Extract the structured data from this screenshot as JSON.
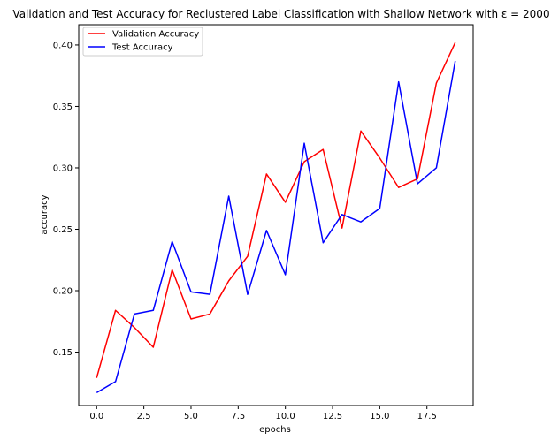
{
  "chart_data": {
    "type": "line",
    "title": "Validation and Test Accuracy for Reclustered Label Classification with Shallow Network with ε = 2000",
    "xlabel": "epochs",
    "ylabel": "accuracy",
    "xlim": [
      -0.95,
      19.95
    ],
    "ylim": [
      0.1065,
      0.4165
    ],
    "xticks": [
      0.0,
      2.5,
      5.0,
      7.5,
      10.0,
      12.5,
      15.0,
      17.5
    ],
    "xtick_labels": [
      "0.0",
      "2.5",
      "5.0",
      "7.5",
      "10.0",
      "12.5",
      "15.0",
      "17.5"
    ],
    "yticks": [
      0.15,
      0.2,
      0.25,
      0.3,
      0.35,
      0.4
    ],
    "ytick_labels": [
      "0.15",
      "0.20",
      "0.25",
      "0.30",
      "0.35",
      "0.40"
    ],
    "grid": false,
    "legend_position": "top-left",
    "x": [
      0,
      1,
      2,
      3,
      4,
      5,
      6,
      7,
      8,
      9,
      10,
      11,
      12,
      13,
      14,
      15,
      16,
      17,
      18,
      19
    ],
    "series": [
      {
        "name": "Validation Accuracy",
        "color": "#ff0000",
        "values": [
          0.129,
          0.184,
          0.17,
          0.154,
          0.217,
          0.177,
          0.181,
          0.208,
          0.228,
          0.295,
          0.272,
          0.305,
          0.315,
          0.251,
          0.33,
          0.308,
          0.284,
          0.291,
          0.369,
          0.402
        ]
      },
      {
        "name": "Test Accuracy",
        "color": "#0000ff",
        "values": [
          0.117,
          0.126,
          0.181,
          0.184,
          0.24,
          0.199,
          0.197,
          0.277,
          0.197,
          0.249,
          0.213,
          0.32,
          0.239,
          0.262,
          0.256,
          0.267,
          0.37,
          0.287,
          0.3,
          0.387
        ]
      }
    ]
  }
}
